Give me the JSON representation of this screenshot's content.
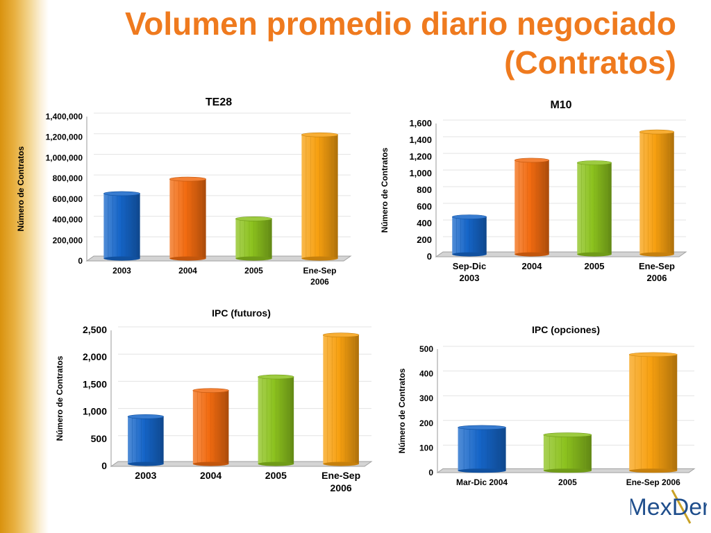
{
  "title": {
    "line1": "Volumen promedio diario negociado",
    "line2": "(Contratos)"
  },
  "logo": {
    "text": "MexDer"
  },
  "colors": {
    "title": "#ef7a1e",
    "blue": "#1565c8",
    "orange_red": "#f26b10",
    "green": "#8cc21e",
    "orange": "#f7a010"
  },
  "chart_data": [
    {
      "type": "bar",
      "title": "TE28",
      "ylabel": "Número de Contratos",
      "categories": [
        [
          "2003"
        ],
        [
          "2004"
        ],
        [
          "2005"
        ],
        [
          "Ene-Sep",
          "2006"
        ]
      ],
      "values": [
        630000,
        770000,
        385000,
        1200000
      ],
      "bar_colors": [
        "blue",
        "orange_red",
        "green",
        "orange"
      ],
      "yticks": [
        "0",
        "200,000",
        "400,000",
        "600,000",
        "800,000",
        "1,000,000",
        "1,200,000",
        "1,400,000"
      ],
      "ylim": [
        0,
        1400000
      ],
      "grid": true
    },
    {
      "type": "bar",
      "title": "M10",
      "ylabel": "Número de Contratos",
      "categories": [
        [
          "Sep-Dic",
          "2003"
        ],
        [
          "2004"
        ],
        [
          "2005"
        ],
        [
          "Ene-Sep",
          "2006"
        ]
      ],
      "values": [
        450,
        1130,
        1100,
        1470
      ],
      "bar_colors": [
        "blue",
        "orange_red",
        "green",
        "orange"
      ],
      "yticks": [
        "0",
        "200",
        "400",
        "600",
        "800",
        "1,000",
        "1,200",
        "1,400",
        "1,600"
      ],
      "ylim": [
        0,
        1600
      ],
      "grid": true
    },
    {
      "type": "bar",
      "title": "IPC (futuros)",
      "ylabel": "Número de Contratos",
      "categories": [
        [
          "2003"
        ],
        [
          "2004"
        ],
        [
          "2005"
        ],
        [
          "Ene-Sep",
          "2006"
        ]
      ],
      "values": [
        870,
        1350,
        1600,
        2370
      ],
      "bar_colors": [
        "blue",
        "orange_red",
        "green",
        "orange"
      ],
      "yticks": [
        "0",
        "500",
        "1,000",
        "1,500",
        "2,000",
        "2,500"
      ],
      "ylim": [
        0,
        2500
      ],
      "grid": true
    },
    {
      "type": "bar",
      "title": "IPC (opciones)",
      "ylabel": "Número de Contratos",
      "categories": [
        [
          "Mar-Dic 2004"
        ],
        [
          "2005"
        ],
        [
          "Ene-Sep 2006"
        ]
      ],
      "values": [
        175,
        145,
        470
      ],
      "bar_colors": [
        "blue",
        "green",
        "orange"
      ],
      "yticks": [
        "0",
        "100",
        "200",
        "300",
        "400",
        "500"
      ],
      "ylim": [
        0,
        500
      ],
      "grid": true
    }
  ]
}
